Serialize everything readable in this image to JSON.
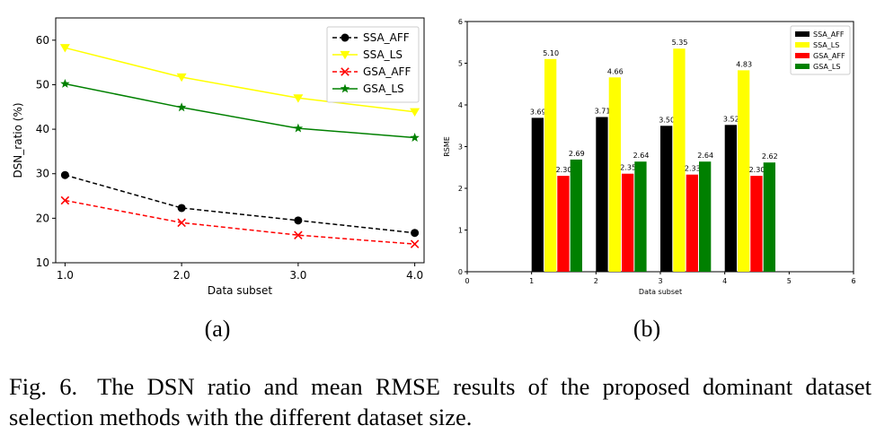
{
  "figure": {
    "caption_label": "Fig. 6.",
    "caption_text": "The DSN ratio and mean RMSE results of the proposed dominant dataset selection methods with the different dataset size."
  },
  "chart_data": [
    {
      "type": "line",
      "panel_label": "(a)",
      "xlabel": "Data subset",
      "ylabel": "DSN_ratio (%)",
      "x": [
        1,
        2,
        3,
        4
      ],
      "xticks": [
        "1.0",
        "2.0",
        "3.0",
        "4.0"
      ],
      "yticks": [
        "10",
        "20",
        "30",
        "40",
        "50",
        "60"
      ],
      "xlim": [
        0.92,
        4.08
      ],
      "ylim": [
        10,
        65
      ],
      "legend_position": "top-right",
      "series": [
        {
          "name": "SSA_AFF",
          "values": [
            29.7,
            22.3,
            19.5,
            16.7
          ],
          "color": "#000000",
          "marker": "circle",
          "dashed": true
        },
        {
          "name": "SSA_LS",
          "values": [
            58.3,
            51.7,
            47.0,
            43.9
          ],
          "color": "#ffff00",
          "marker": "triangle-down",
          "dashed": false
        },
        {
          "name": "GSA_AFF",
          "values": [
            24.0,
            19.0,
            16.2,
            14.2
          ],
          "color": "#ff0000",
          "marker": "x",
          "dashed": true
        },
        {
          "name": "GSA_LS",
          "values": [
            50.2,
            44.9,
            40.2,
            38.1
          ],
          "color": "#008000",
          "marker": "star",
          "dashed": false
        }
      ]
    },
    {
      "type": "bar",
      "panel_label": "(b)",
      "xlabel": "Data subset",
      "ylabel": "RSME",
      "categories": [
        1,
        2,
        3,
        4
      ],
      "xticks": [
        "0",
        "1",
        "2",
        "3",
        "4",
        "5",
        "6"
      ],
      "yticks": [
        "0",
        "1",
        "2",
        "3",
        "4",
        "5",
        "6"
      ],
      "xlim": [
        0,
        6
      ],
      "ylim": [
        0,
        6
      ],
      "legend_position": "top-right",
      "series": [
        {
          "name": "SSA_AFF",
          "values": [
            3.69,
            3.71,
            3.5,
            3.52
          ],
          "labels": [
            "3.69",
            "3.71",
            "3.50",
            "3.52"
          ],
          "color": "#000000"
        },
        {
          "name": "SSA_LS",
          "values": [
            5.1,
            4.66,
            5.35,
            4.83
          ],
          "labels": [
            "5.10",
            "4.66",
            "5.35",
            "4.83"
          ],
          "color": "#ffff00"
        },
        {
          "name": "GSA_AFF",
          "values": [
            2.3,
            2.35,
            2.33,
            2.3
          ],
          "labels": [
            "2.30",
            "2.35",
            "2.33",
            "2.30"
          ],
          "color": "#ff0000"
        },
        {
          "name": "GSA_LS",
          "values": [
            2.69,
            2.64,
            2.64,
            2.62
          ],
          "labels": [
            "2.69",
            "2.64",
            "2.64",
            "2.62"
          ],
          "color": "#008000"
        }
      ]
    }
  ]
}
